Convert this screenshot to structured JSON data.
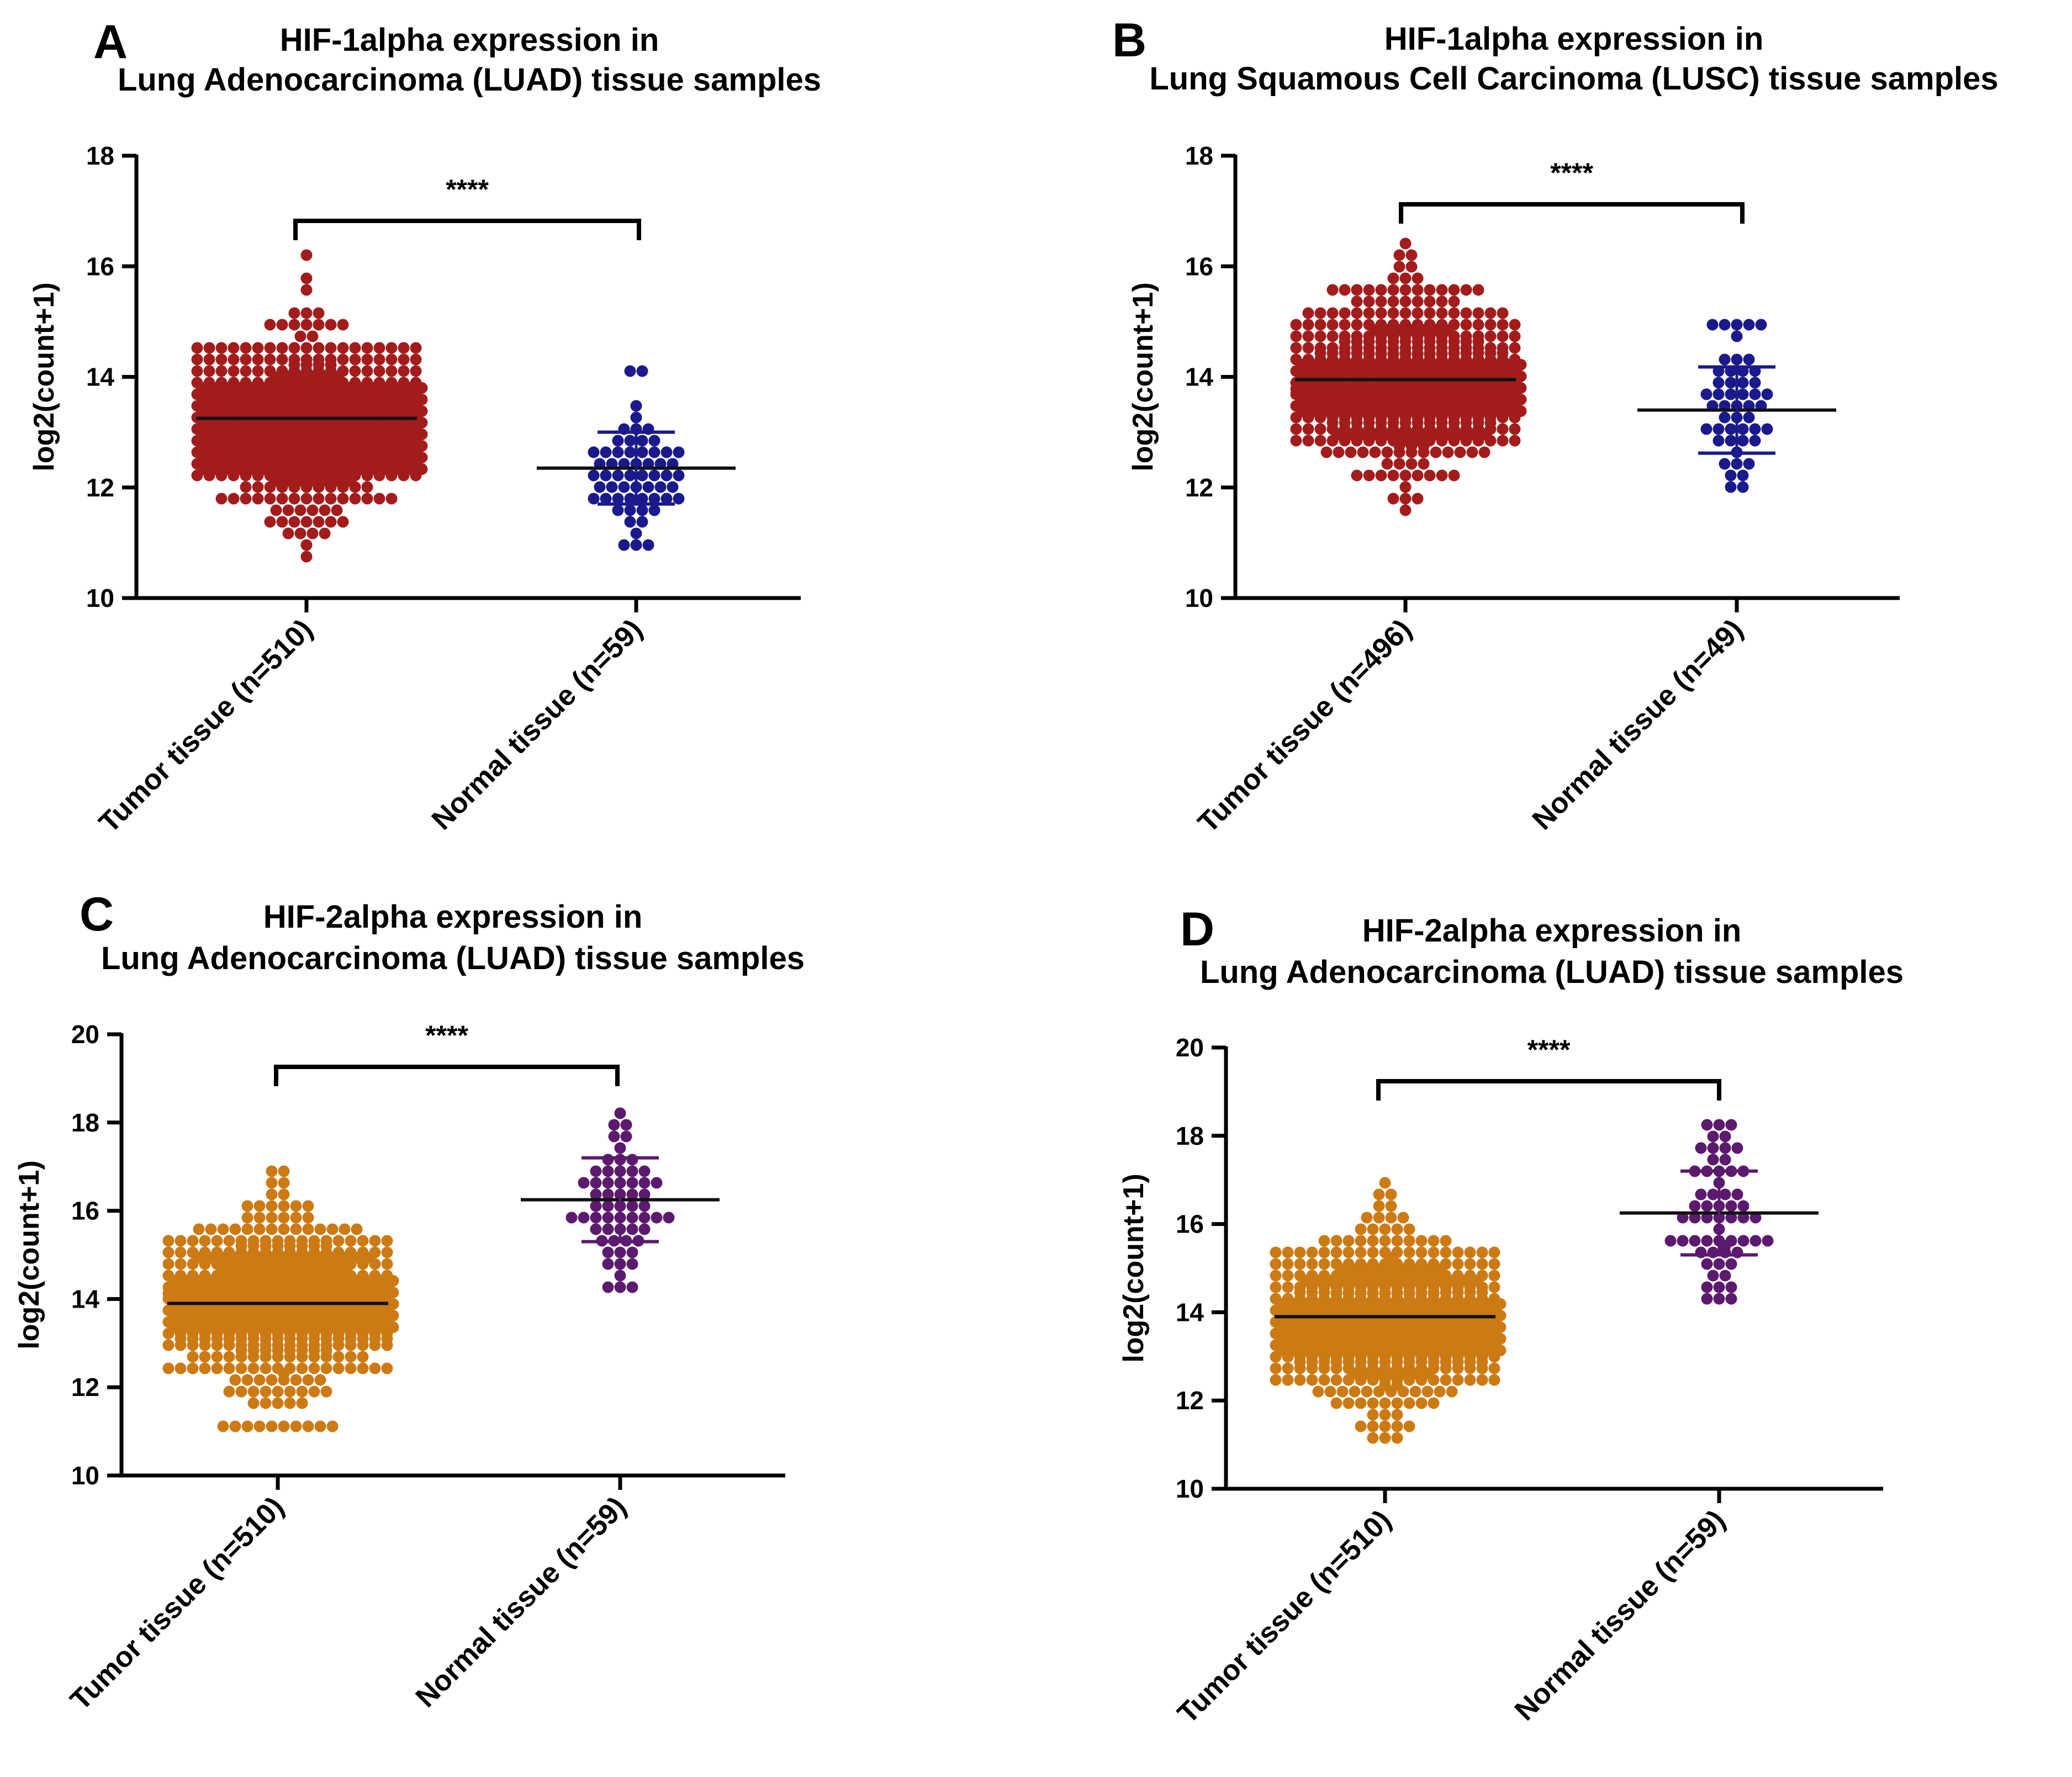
{
  "chart_data": [
    {
      "panel": "A",
      "type": "scatter",
      "subtype": "beeswarm dot plot",
      "title_lines": [
        "HIF-1alpha expression in",
        "Lung Adenocarcinoma (LUAD) tissue samples"
      ],
      "ylabel": "log2(count+1)",
      "ylim": [
        10,
        18
      ],
      "yticks": [
        "10",
        "12",
        "14",
        "16",
        "18"
      ],
      "significance": "****",
      "groups": [
        {
          "label": "Tumor tissue (n=510)",
          "n": 510,
          "color": "#A31C1C",
          "mean": 13.25,
          "min": 10.75,
          "max": 16.1,
          "sd": 0.85,
          "width_ratio": 1.0,
          "show_sd_bars": false
        },
        {
          "label": "Normal tissue (n=59)",
          "n": 59,
          "color": "#1A1A8C",
          "mean": 12.35,
          "min": 10.95,
          "max": 14.1,
          "sd": 0.65,
          "width_ratio": 0.48,
          "show_sd_bars": true
        }
      ]
    },
    {
      "panel": "B",
      "type": "scatter",
      "subtype": "beeswarm dot plot",
      "title_lines": [
        "HIF-1alpha expression in",
        "Lung Squamous Cell Carcinoma (LUSC) tissue samples"
      ],
      "ylabel": "log2(count+1)",
      "ylim": [
        10,
        18
      ],
      "yticks": [
        "10",
        "12",
        "14",
        "16",
        "18"
      ],
      "significance": "****",
      "groups": [
        {
          "label": "Tumor tissue (n=496)",
          "n": 496,
          "color": "#A31C1C",
          "mean": 13.95,
          "min": 11.65,
          "max": 16.35,
          "sd": 0.8,
          "width_ratio": 1.0,
          "show_sd_bars": false
        },
        {
          "label": "Normal tissue (n=49)",
          "n": 49,
          "color": "#1A1A8C",
          "mean": 13.4,
          "min": 11.95,
          "max": 15.0,
          "sd": 0.78,
          "width_ratio": 0.5,
          "show_sd_bars": true
        }
      ]
    },
    {
      "panel": "C",
      "type": "scatter",
      "subtype": "beeswarm dot plot",
      "title_lines": [
        "HIF-2alpha expression in",
        "Lung Adenocarcinoma (LUAD) tissue samples"
      ],
      "ylabel": "log2(count+1)",
      "ylim": [
        10,
        20
      ],
      "yticks": [
        "10",
        "12",
        "14",
        "16",
        "18",
        "20"
      ],
      "significance": "****",
      "groups": [
        {
          "label": "Tumor tissue (n=510)",
          "n": 510,
          "color": "#CC7A14",
          "mean": 13.9,
          "min": 11.1,
          "max": 16.95,
          "sd": 1.0,
          "width_ratio": 1.0,
          "show_sd_bars": false
        },
        {
          "label": "Normal tissue (n=59)",
          "n": 59,
          "color": "#5C1A6E",
          "mean": 16.25,
          "min": 14.35,
          "max": 18.2,
          "sd": 0.95,
          "width_ratio": 0.48,
          "show_sd_bars": true
        }
      ]
    },
    {
      "panel": "D",
      "type": "scatter",
      "subtype": "beeswarm dot plot",
      "title_lines": [
        "HIF-2alpha expression in",
        "Lung Adenocarcinoma (LUAD) tissue samples"
      ],
      "ylabel": "log2(count+1)",
      "ylim": [
        10,
        20
      ],
      "yticks": [
        "10",
        "12",
        "14",
        "16",
        "18",
        "20"
      ],
      "significance": "****",
      "groups": [
        {
          "label": "Tumor tissue (n=510)",
          "n": 510,
          "color": "#CC7A14",
          "mean": 13.9,
          "min": 11.1,
          "max": 16.95,
          "sd": 1.0,
          "width_ratio": 1.0,
          "show_sd_bars": false
        },
        {
          "label": "Normal tissue (n=59)",
          "n": 59,
          "color": "#5C1A6E",
          "mean": 16.25,
          "min": 14.35,
          "max": 18.2,
          "sd": 0.95,
          "width_ratio": 0.48,
          "show_sd_bars": true
        }
      ]
    }
  ]
}
